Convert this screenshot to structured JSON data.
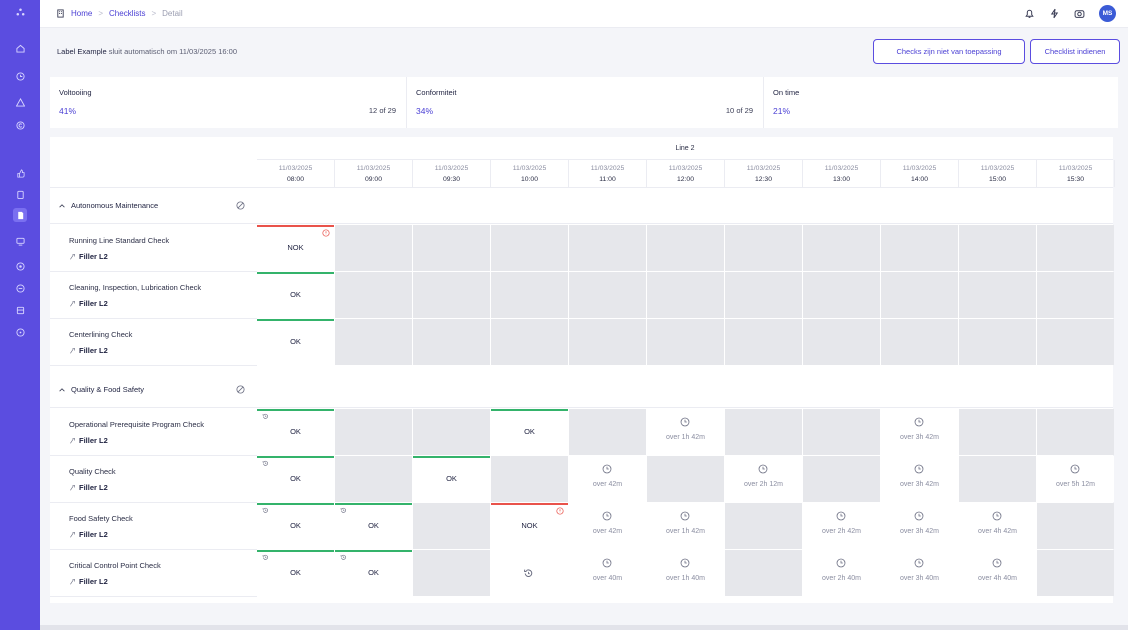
{
  "breadcrumb": {
    "home": "Home",
    "checklists": "Checklists",
    "detail": "Detail",
    "sep": ">"
  },
  "user": {
    "initials": "MS"
  },
  "header": {
    "label_name": "Label Example",
    "label_suffix": "sluit automatisch om 11/03/2025 16:00",
    "btn_na": "Checks zijn niet van toepassing",
    "btn_submit": "Checklist indienen"
  },
  "stats": [
    {
      "label": "Voltooiing",
      "value": "41%",
      "frac": "12 of 29"
    },
    {
      "label": "Conformiteit",
      "value": "34%",
      "frac": "10 of 29"
    },
    {
      "label": "On time",
      "value": "21%",
      "frac": ""
    }
  ],
  "line": "Line 2",
  "slots": [
    {
      "date": "11/03/2025",
      "time": "08:00"
    },
    {
      "date": "11/03/2025",
      "time": "09:00"
    },
    {
      "date": "11/03/2025",
      "time": "09:30"
    },
    {
      "date": "11/03/2025",
      "time": "10:00"
    },
    {
      "date": "11/03/2025",
      "time": "11:00"
    },
    {
      "date": "11/03/2025",
      "time": "12:00"
    },
    {
      "date": "11/03/2025",
      "time": "12:30"
    },
    {
      "date": "11/03/2025",
      "time": "13:00"
    },
    {
      "date": "11/03/2025",
      "time": "14:00"
    },
    {
      "date": "11/03/2025",
      "time": "15:00"
    },
    {
      "date": "11/03/2025",
      "time": "15:30"
    }
  ],
  "sections": [
    {
      "title": "Autonomous Maintenance",
      "checks": [
        {
          "name": "Running Line Standard Check",
          "asset": "Filler L2",
          "cells": [
            {
              "s": "nok",
              "t": "NOK",
              "warn": true
            },
            {
              "s": "na"
            },
            {
              "s": "na"
            },
            {
              "s": "na"
            },
            {
              "s": "na"
            },
            {
              "s": "na"
            },
            {
              "s": "na"
            },
            {
              "s": "na"
            },
            {
              "s": "na"
            },
            {
              "s": "na"
            },
            {
              "s": "na"
            }
          ]
        },
        {
          "name": "Cleaning, Inspection, Lubrication Check",
          "asset": "Filler L2",
          "cells": [
            {
              "s": "ok",
              "t": "OK"
            },
            {
              "s": "na"
            },
            {
              "s": "na"
            },
            {
              "s": "na"
            },
            {
              "s": "na"
            },
            {
              "s": "na"
            },
            {
              "s": "na"
            },
            {
              "s": "na"
            },
            {
              "s": "na"
            },
            {
              "s": "na"
            },
            {
              "s": "na"
            }
          ]
        },
        {
          "name": "Centerlining Check",
          "asset": "Filler L2",
          "cells": [
            {
              "s": "ok",
              "t": "OK"
            },
            {
              "s": "na"
            },
            {
              "s": "na"
            },
            {
              "s": "na"
            },
            {
              "s": "na"
            },
            {
              "s": "na"
            },
            {
              "s": "na"
            },
            {
              "s": "na"
            },
            {
              "s": "na"
            },
            {
              "s": "na"
            },
            {
              "s": "na"
            }
          ]
        }
      ]
    },
    {
      "title": "Quality & Food Safety",
      "checks": [
        {
          "name": "Operational Prerequisite Program Check",
          "asset": "Filler L2",
          "cells": [
            {
              "s": "ok",
              "t": "OK",
              "hist": true
            },
            {
              "s": "na"
            },
            {
              "s": "na"
            },
            {
              "s": "ok",
              "t": "OK"
            },
            {
              "s": "na"
            },
            {
              "s": "pend",
              "t": "over 1h 42m"
            },
            {
              "s": "na"
            },
            {
              "s": "na"
            },
            {
              "s": "pend",
              "t": "over 3h 42m"
            },
            {
              "s": "na"
            },
            {
              "s": "na"
            }
          ]
        },
        {
          "name": "Quality Check",
          "asset": "Filler L2",
          "cells": [
            {
              "s": "ok",
              "t": "OK",
              "hist": true
            },
            {
              "s": "na"
            },
            {
              "s": "ok",
              "t": "OK"
            },
            {
              "s": "na"
            },
            {
              "s": "pend",
              "t": "over 42m"
            },
            {
              "s": "na"
            },
            {
              "s": "pend",
              "t": "over 2h 12m"
            },
            {
              "s": "na"
            },
            {
              "s": "pend",
              "t": "over 3h 42m"
            },
            {
              "s": "na"
            },
            {
              "s": "pend",
              "t": "over 5h 12m"
            }
          ]
        },
        {
          "name": "Food Safety Check",
          "asset": "Filler L2",
          "cells": [
            {
              "s": "ok",
              "t": "OK",
              "hist": true
            },
            {
              "s": "ok",
              "t": "OK",
              "hist": true
            },
            {
              "s": "na"
            },
            {
              "s": "nok",
              "t": "NOK",
              "warn": true
            },
            {
              "s": "pend",
              "t": "over 42m"
            },
            {
              "s": "pend",
              "t": "over 1h 42m"
            },
            {
              "s": "na"
            },
            {
              "s": "pend",
              "t": "over 2h 42m"
            },
            {
              "s": "pend",
              "t": "over 3h 42m"
            },
            {
              "s": "pend",
              "t": "over 4h 42m"
            },
            {
              "s": "na"
            }
          ]
        },
        {
          "name": "Critical Control Point Check",
          "asset": "Filler L2",
          "cells": [
            {
              "s": "ok",
              "t": "OK",
              "hist": true
            },
            {
              "s": "ok",
              "t": "OK",
              "hist": true
            },
            {
              "s": "na"
            },
            {
              "s": "histonly"
            },
            {
              "s": "pend",
              "t": "over 40m"
            },
            {
              "s": "pend",
              "t": "over 1h 40m"
            },
            {
              "s": "na"
            },
            {
              "s": "pend",
              "t": "over 2h 40m"
            },
            {
              "s": "pend",
              "t": "over 3h 40m"
            },
            {
              "s": "pend",
              "t": "over 4h 40m"
            },
            {
              "s": "na"
            }
          ]
        }
      ]
    }
  ],
  "colors": {
    "accent": "#5b4de0",
    "ok_bar": "#34b36b",
    "nok_bar": "#e9534b",
    "na_bg": "#e6e7eb"
  }
}
